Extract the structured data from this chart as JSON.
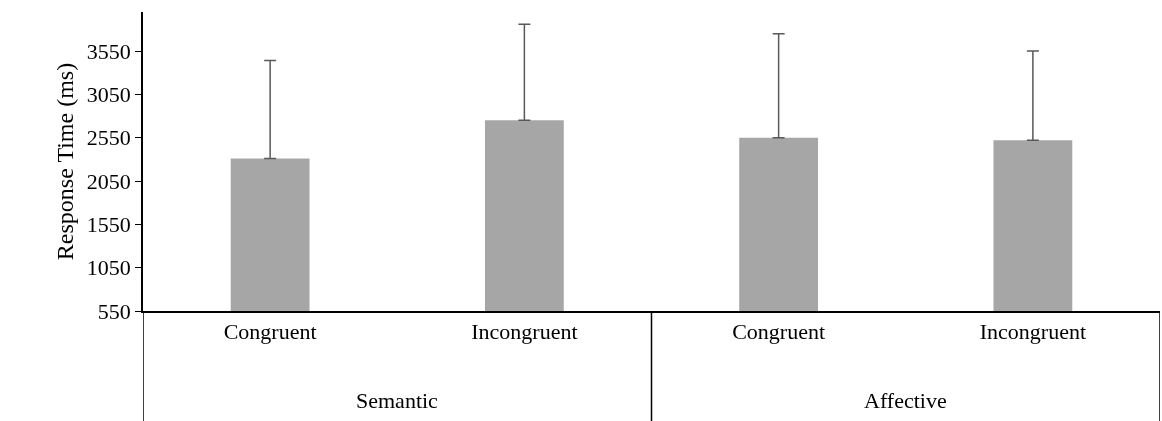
{
  "chart_data": {
    "type": "bar",
    "ylabel": "Response Time (ms)",
    "categories": [
      "Congruent",
      "Incongruent",
      "Congruent",
      "Incongruent"
    ],
    "values": [
      2310,
      2750,
      2550,
      2520
    ],
    "errors": [
      [
        2310,
        3440
      ],
      [
        2750,
        3860
      ],
      [
        2550,
        3750
      ],
      [
        2520,
        3550
      ]
    ],
    "color": "#a6a6a6",
    "ylim": [
      550,
      4000
    ],
    "yticks": [
      550,
      1050,
      1550,
      2050,
      2550,
      3050,
      3550
    ],
    "annotations": [
      "Semantic",
      "Affective"
    ],
    "legend": false
  }
}
